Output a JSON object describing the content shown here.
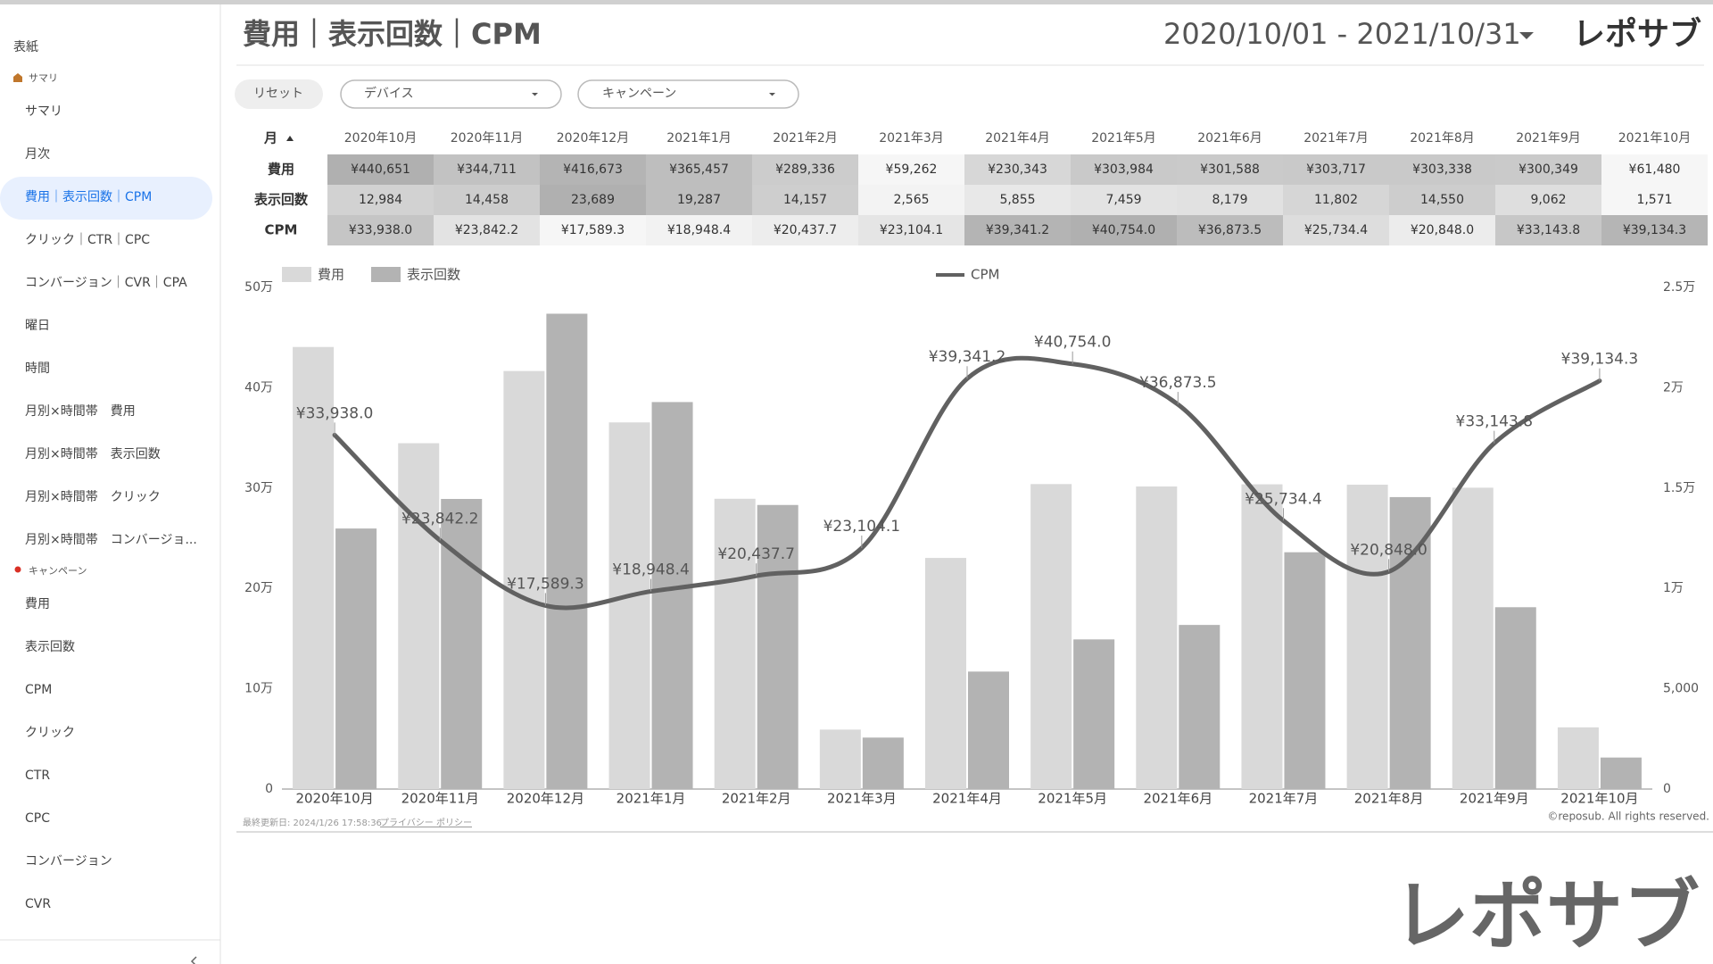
{
  "sidebar": {
    "cover": "表紙",
    "sections": [
      {
        "title": "サマリ",
        "items": [
          "サマリ",
          "月次",
          "費用｜表示回数｜CPM",
          "クリック｜CTR｜CPC",
          "コンバージョン｜CVR｜CPA",
          "曜日",
          "時間",
          "月別×時間帯　費用",
          "月別×時間帯　表示回数",
          "月別×時間帯　クリック",
          "月別×時間帯　コンバージョ..."
        ]
      },
      {
        "title": "キャンペーン",
        "items": [
          "費用",
          "表示回数",
          "CPM",
          "クリック",
          "CTR",
          "CPC",
          "コンバージョン",
          "CVR"
        ]
      }
    ]
  },
  "header": {
    "title": "費用｜表示回数｜CPM",
    "date_range": "2020/10/01 - 2021/10/31",
    "logo": "レポサブ"
  },
  "filters": [
    "リセット",
    "デバイス",
    "キャンペーン"
  ],
  "table": {
    "corner": "月"
  },
  "chart_data": {
    "type": "combo",
    "categories": [
      "2020年10月",
      "2020年11月",
      "2020年12月",
      "2021年1月",
      "2021年2月",
      "2021年3月",
      "2021年4月",
      "2021年5月",
      "2021年6月",
      "2021年7月",
      "2021年8月",
      "2021年9月",
      "2021年10月"
    ],
    "series": [
      {
        "name": "費用",
        "type": "bar",
        "color": "#d9d9d9",
        "values": [
          440651,
          344711,
          416673,
          365457,
          289336,
          59262,
          230343,
          303984,
          301588,
          303717,
          303338,
          300349,
          61480
        ],
        "value_labels": [
          "¥440,651",
          "¥344,711",
          "¥416,673",
          "¥365,457",
          "¥289,336",
          "¥59,262",
          "¥230,343",
          "¥303,984",
          "¥301,588",
          "¥303,717",
          "¥303,338",
          "¥300,349",
          "¥61,480"
        ]
      },
      {
        "name": "表示回数",
        "type": "bar",
        "axis": "y2",
        "color": "#b3b3b3",
        "values": [
          12984,
          14458,
          23689,
          19287,
          14157,
          2565,
          5855,
          7459,
          8179,
          11802,
          14550,
          9062,
          1571
        ],
        "value_labels": [
          "12,984",
          "14,458",
          "23,689",
          "19,287",
          "14,157",
          "2,565",
          "5,855",
          "7,459",
          "8,179",
          "11,802",
          "14,550",
          "9,062",
          "1,571"
        ]
      },
      {
        "name": "CPM",
        "type": "line",
        "color": "#616161",
        "values": [
          33938.0,
          23842.2,
          17589.3,
          18948.4,
          20437.7,
          23104.1,
          39341.2,
          40754.0,
          36873.5,
          25734.4,
          20848.0,
          33143.8,
          39134.3
        ],
        "value_labels": [
          "¥33,938.0",
          "¥23,842.2",
          "¥17,589.3",
          "¥18,948.4",
          "¥20,437.7",
          "¥23,104.1",
          "¥39,341.2",
          "¥40,754.0",
          "¥36,873.5",
          "¥25,734.4",
          "¥20,848.0",
          "¥33,143.8",
          "¥39,134.3"
        ]
      }
    ],
    "ylim": [
      0,
      500000
    ],
    "yticks": [
      0,
      {
        "value": 100000,
        "label": "10万"
      },
      {
        "value": 200000,
        "label": "20万"
      },
      {
        "value": 300000,
        "label": "30万"
      },
      {
        "value": 400000,
        "label": "40万"
      },
      {
        "value": 500000,
        "label": "50万"
      }
    ],
    "y2lim": [
      0,
      25000
    ],
    "y2ticks": [
      0,
      {
        "value": 5000,
        "label": "5,000"
      },
      {
        "value": 10000,
        "label": "1万"
      },
      {
        "value": 15000,
        "label": "1.5万"
      },
      {
        "value": 20000,
        "label": "2万"
      },
      {
        "value": 25000,
        "label": "2.5万"
      }
    ],
    "grid": false,
    "legend": "top"
  },
  "footer": {
    "updated": "最終更新日: 2024/1/26 17:58:36",
    "privacy": "プライバシー ポリシー",
    "copyright": "©reposub. All rights reserved.",
    "watermark_logo": "レポサブ"
  }
}
